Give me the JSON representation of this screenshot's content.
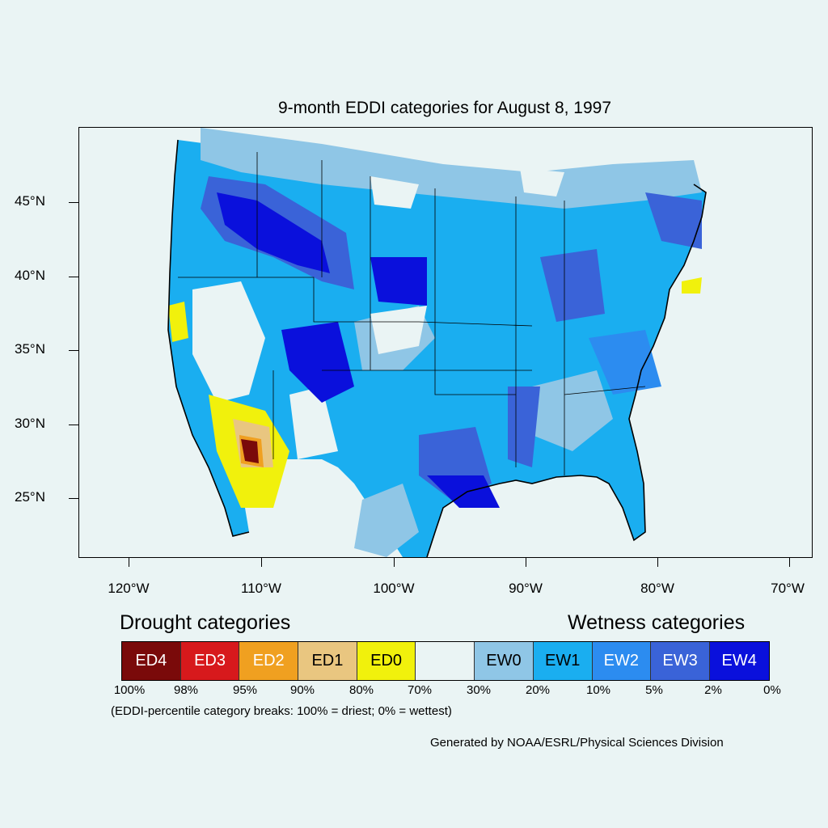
{
  "title": "9-month EDDI categories for August 8, 1997",
  "y_axis": [
    {
      "label": "45°N",
      "lat": 45
    },
    {
      "label": "40°N",
      "lat": 40
    },
    {
      "label": "35°N",
      "lat": 35
    },
    {
      "label": "30°N",
      "lat": 30
    },
    {
      "label": "25°N",
      "lat": 25
    }
  ],
  "x_axis": [
    {
      "label": "120°W",
      "lon": -120
    },
    {
      "label": "110°W",
      "lon": -110
    },
    {
      "label": "100°W",
      "lon": -100
    },
    {
      "label": "90°W",
      "lon": -90
    },
    {
      "label": "80°W",
      "lon": -80
    },
    {
      "label": "70°W",
      "lon": -70
    }
  ],
  "legend": {
    "drought_heading": "Drought categories",
    "wetness_heading": "Wetness categories",
    "categories": [
      {
        "label": "ED4",
        "color": "#7a0a0a",
        "text_color": "#ffffff"
      },
      {
        "label": "ED3",
        "color": "#d7191c",
        "text_color": "#ffffff"
      },
      {
        "label": "ED2",
        "color": "#f0a020",
        "text_color": "#ffffff"
      },
      {
        "label": "ED1",
        "color": "#e9c680",
        "text_color": "#000000"
      },
      {
        "label": "ED0",
        "color": "#f1f10c",
        "text_color": "#000000"
      },
      {
        "label": "",
        "color": "#eaf4f4",
        "text_color": "#000000"
      },
      {
        "label": "EW0",
        "color": "#8fc6e6",
        "text_color": "#000000"
      },
      {
        "label": "EW1",
        "color": "#1aaef0",
        "text_color": "#000000"
      },
      {
        "label": "EW2",
        "color": "#2c8cf0",
        "text_color": "#ffffff"
      },
      {
        "label": "EW3",
        "color": "#3a63d8",
        "text_color": "#ffffff"
      },
      {
        "label": "EW4",
        "color": "#0a10dc",
        "text_color": "#ffffff"
      }
    ],
    "percentiles": [
      "100%",
      "98%",
      "95%",
      "90%",
      "80%",
      "70%",
      "30%",
      "20%",
      "10%",
      "5%",
      "2%",
      "0%"
    ],
    "note": "(EDDI-percentile category breaks: 100% = driest; 0% = wettest)"
  },
  "credit": "Generated by NOAA/ESRL/Physical Sciences Division"
}
